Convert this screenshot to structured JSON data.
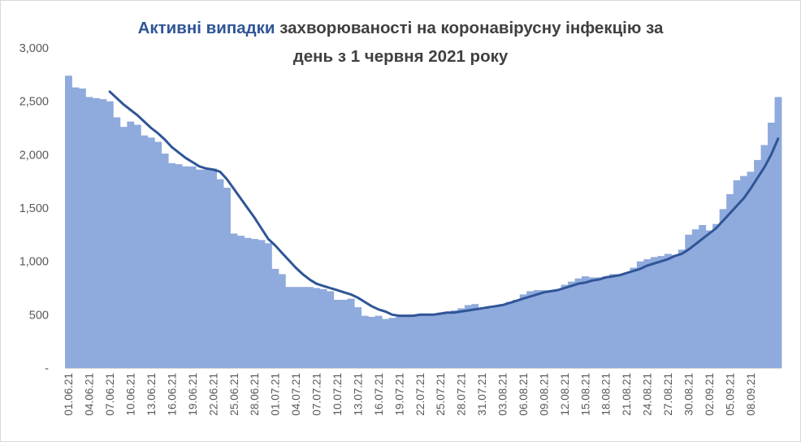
{
  "title": {
    "highlight": "Активні випадки",
    "rest_line1": " захворюваності на коронавірусну інфекцію за",
    "line2": "день з 1 червня 2021 року"
  },
  "colors": {
    "bars": "#8faadc",
    "line": "#2f5597",
    "highlight": "#2f5597",
    "text": "#404040"
  },
  "chart_data": {
    "type": "bar",
    "title": "Активні випадки захворюваності на коронавірусну інфекцію за день з 1 червня 2021 року",
    "xlabel": "",
    "ylabel": "",
    "ylim": [
      0,
      3000
    ],
    "yticks": [
      0,
      500,
      1000,
      1500,
      2000,
      2500,
      3000
    ],
    "ytick_labels": [
      "-",
      "500",
      "1,000",
      "1,500",
      "2,000",
      "2,500",
      "3,000"
    ],
    "grid": false,
    "legend": "none",
    "x_labels": [
      "01.06.21",
      "04.06.21",
      "07.06.21",
      "10.06.21",
      "13.06.21",
      "16.06.21",
      "19.06.21",
      "22.06.21",
      "25.06.21",
      "28.06.21",
      "01.07.21",
      "04.07.21",
      "07.07.21",
      "10.07.21",
      "13.07.21",
      "16.07.21",
      "19.07.21",
      "22.07.21",
      "25.07.21",
      "28.07.21",
      "31.07.21",
      "03.08.21",
      "06.08.21",
      "09.08.21",
      "12.08.21",
      "15.08.21",
      "18.08.21",
      "21.08.21",
      "24.08.21",
      "27.08.21",
      "30.08.21",
      "02.09.21",
      "05.09.21",
      "08.09.21"
    ],
    "x_label_every": 3,
    "series": [
      {
        "kind": "bar",
        "values": [
          2740,
          2630,
          2620,
          2540,
          2530,
          2520,
          2500,
          2350,
          2260,
          2310,
          2280,
          2180,
          2160,
          2120,
          2010,
          1920,
          1910,
          1890,
          1890,
          1860,
          1860,
          1870,
          1770,
          1690,
          1260,
          1240,
          1220,
          1210,
          1200,
          1170,
          930,
          880,
          760,
          760,
          760,
          760,
          750,
          740,
          720,
          640,
          640,
          650,
          570,
          490,
          480,
          490,
          460,
          470,
          480,
          480,
          490,
          500,
          510,
          510,
          520,
          530,
          540,
          560,
          590,
          600,
          550,
          560,
          580,
          600,
          620,
          640,
          690,
          720,
          730,
          730,
          730,
          740,
          780,
          810,
          840,
          860,
          850,
          850,
          860,
          880,
          880,
          890,
          940,
          1000,
          1020,
          1040,
          1050,
          1070,
          1060,
          1110,
          1250,
          1300,
          1340,
          1290,
          1350,
          1490,
          1630,
          1760,
          1800,
          1840,
          1950,
          2090,
          2300,
          2540
        ]
      },
      {
        "kind": "line",
        "values": [
          null,
          null,
          null,
          null,
          null,
          null,
          2590,
          2530,
          2470,
          2420,
          2370,
          2310,
          2250,
          2200,
          2140,
          2070,
          2020,
          1970,
          1930,
          1890,
          1870,
          1860,
          1840,
          1770,
          1680,
          1590,
          1500,
          1410,
          1310,
          1210,
          1150,
          1080,
          1010,
          940,
          880,
          830,
          790,
          770,
          750,
          730,
          710,
          690,
          660,
          620,
          580,
          550,
          530,
          500,
          490,
          490,
          490,
          500,
          500,
          500,
          510,
          520,
          520,
          530,
          540,
          550,
          560,
          570,
          580,
          590,
          610,
          630,
          650,
          670,
          690,
          710,
          720,
          730,
          750,
          770,
          790,
          800,
          820,
          830,
          850,
          860,
          870,
          890,
          910,
          930,
          960,
          980,
          1000,
          1020,
          1050,
          1070,
          1110,
          1160,
          1210,
          1260,
          1310,
          1380,
          1450,
          1520,
          1590,
          1680,
          1780,
          1880,
          2000,
          2150
        ]
      }
    ]
  }
}
